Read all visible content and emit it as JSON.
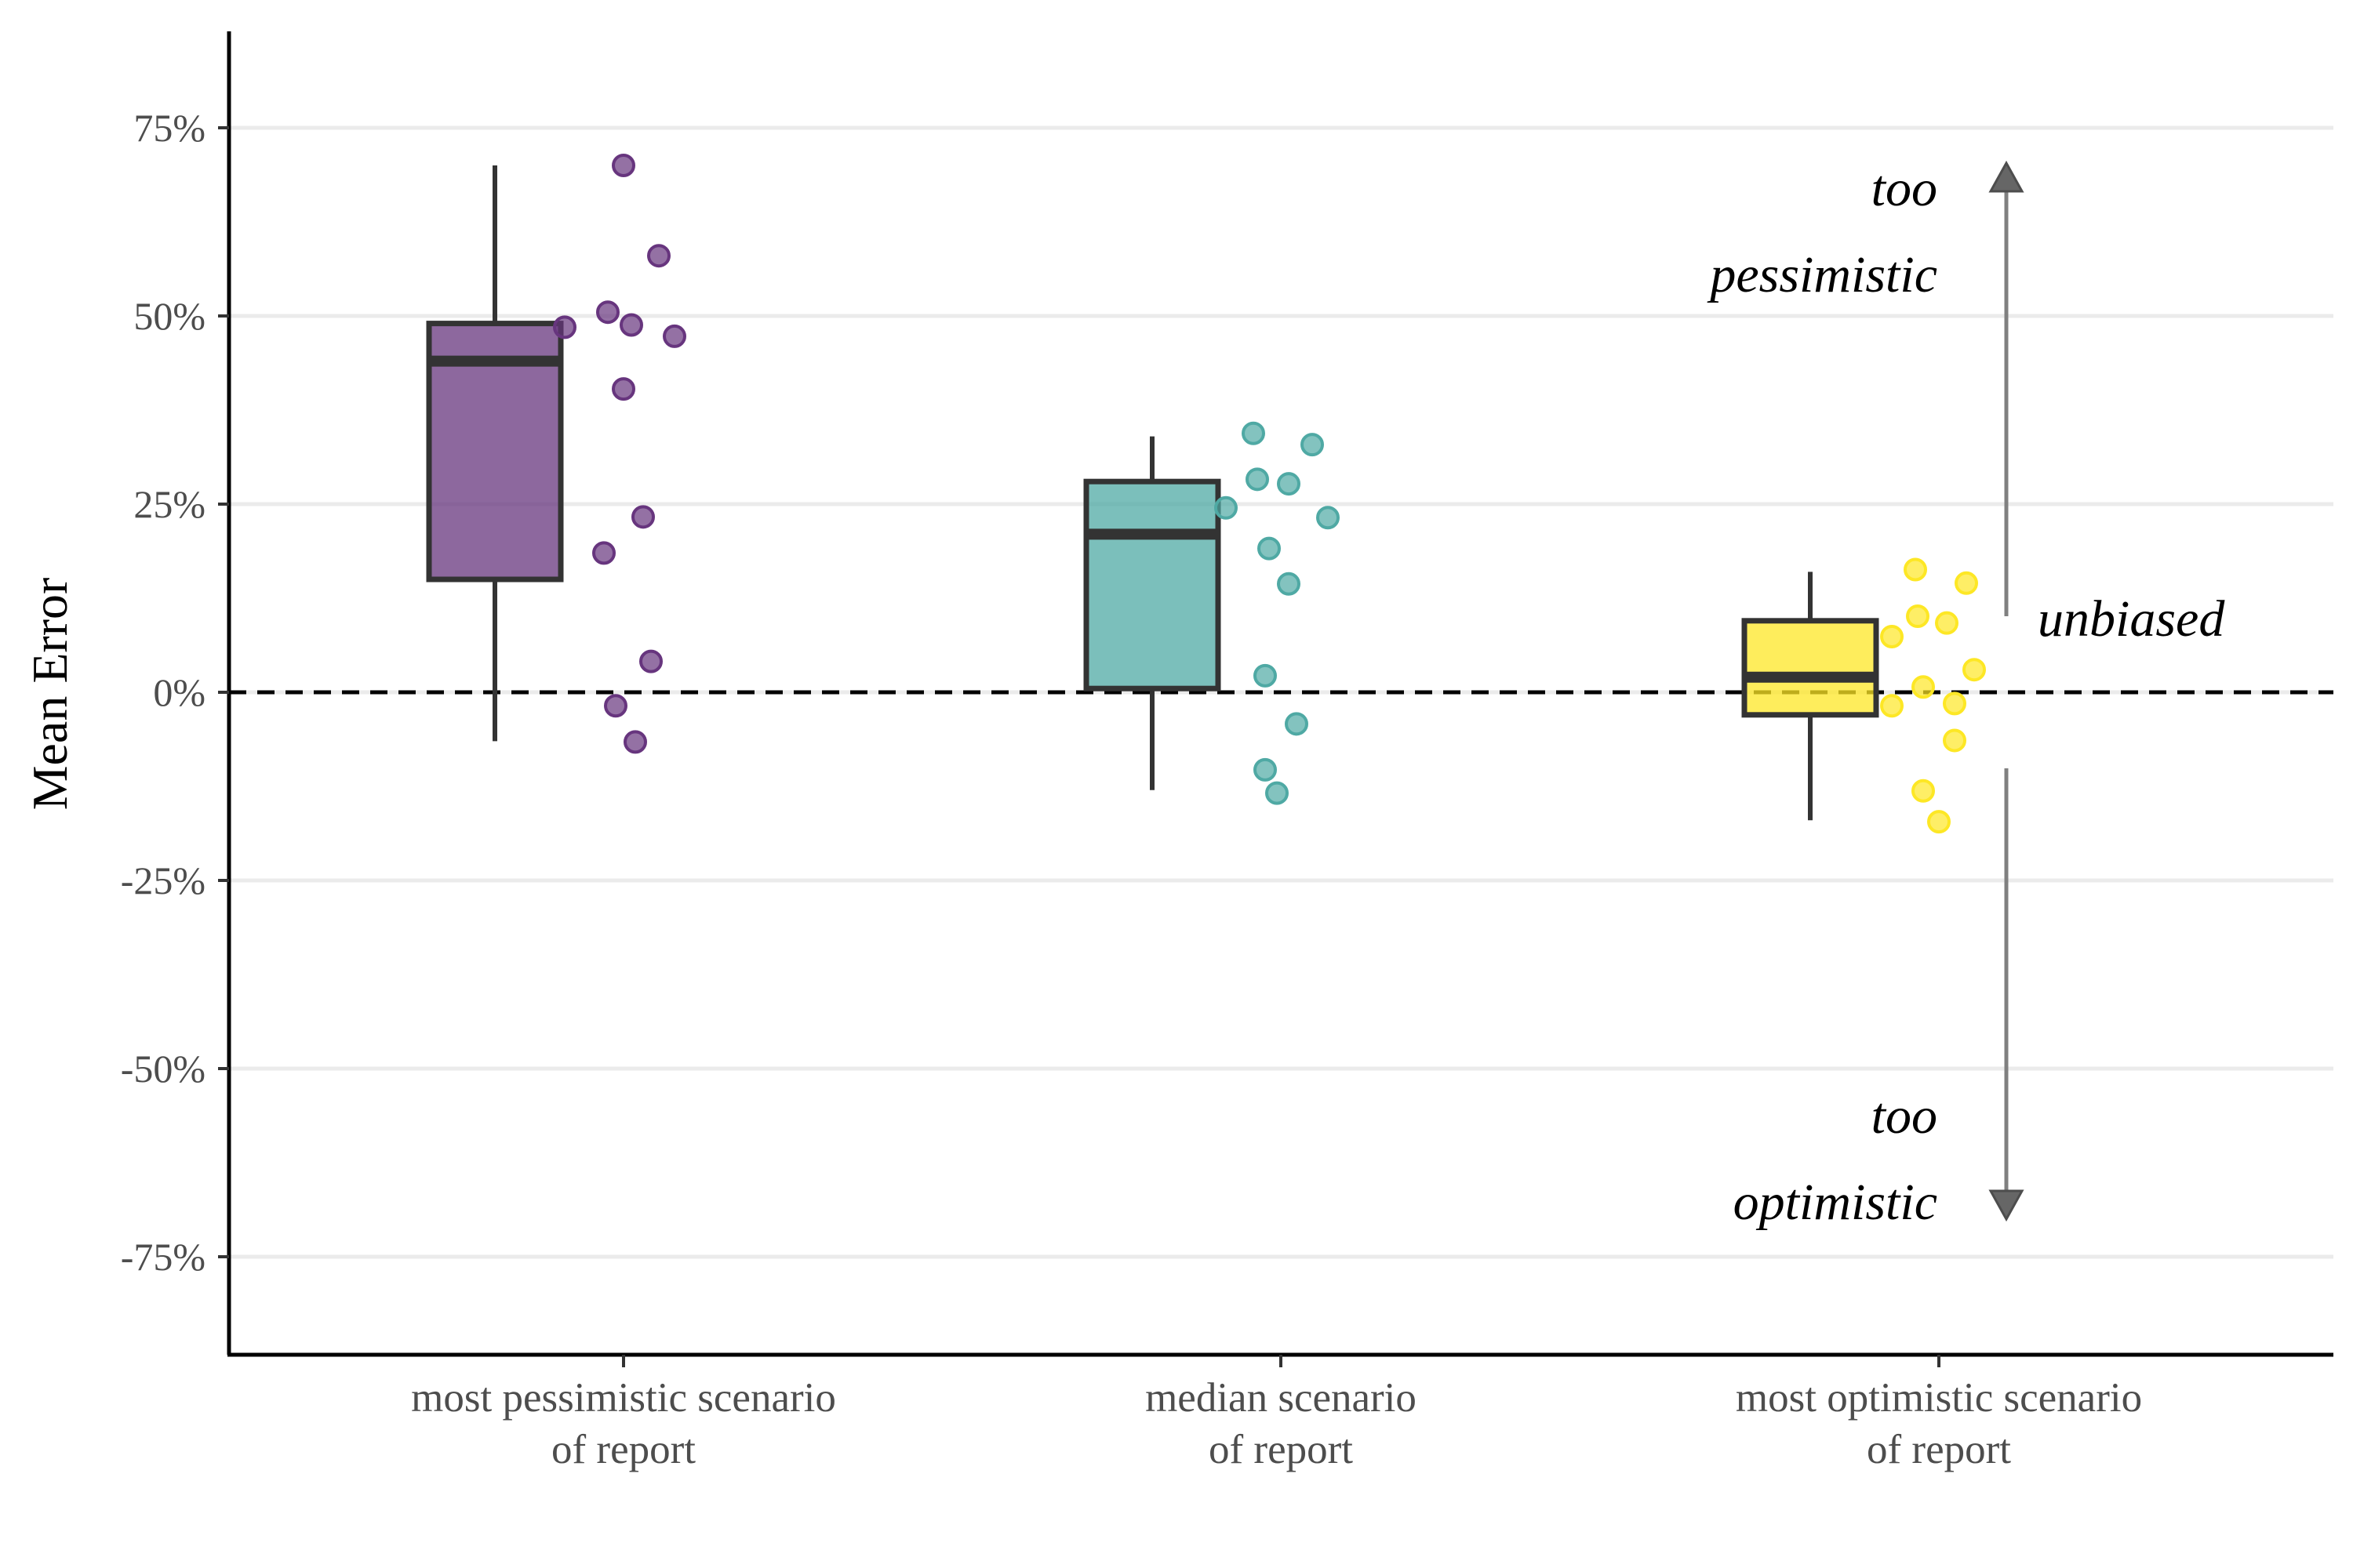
{
  "chart_data": {
    "type": "box",
    "ylabel": "Mean Error",
    "xlabel": "",
    "ylim": [
      -88,
      88
    ],
    "yticks": [
      -75,
      -50,
      -25,
      0,
      25,
      50,
      75
    ],
    "ytick_labels": [
      "-75%",
      "-50%",
      "-25%",
      "0%",
      "25%",
      "50%",
      "75%"
    ],
    "grid": "horizontal",
    "reference_line": 0,
    "categories": [
      {
        "label_lines": [
          "most pessimistic scenario",
          "of report"
        ],
        "color": "#67357E",
        "box": {
          "whisker_low": -6.5,
          "q1": 15,
          "median": 44,
          "q3": 49,
          "whisker_high": 70
        },
        "points": [
          70,
          58,
          50.5,
          48.8,
          48.5,
          47.3,
          40.3,
          23.3,
          18.5,
          4.1,
          -1.8,
          -6.6
        ]
      },
      {
        "label_lines": [
          "median scenario",
          "of report"
        ],
        "color": "#4FA9A4",
        "box": {
          "whisker_low": -13,
          "q1": 0.5,
          "median": 21,
          "q3": 28,
          "whisker_high": 34
        },
        "points": [
          34.4,
          32.9,
          28.3,
          27.7,
          24.5,
          23.2,
          19.1,
          14.4,
          2.2,
          -4.2,
          -10.3,
          -13.4
        ]
      },
      {
        "label_lines": [
          "most optimistic scenario",
          "of report"
        ],
        "color": "#FDE725",
        "box": {
          "whisker_low": -17,
          "q1": -3,
          "median": 2,
          "q3": 9.5,
          "whisker_high": 16
        },
        "points": [
          16.3,
          14.5,
          10.1,
          9.2,
          7.4,
          3.0,
          0.7,
          -1.5,
          -1.8,
          -6.4,
          -13.1,
          -17.2
        ]
      }
    ],
    "annotations": {
      "up_lines": [
        "too",
        "pessimistic"
      ],
      "middle": "unbiased",
      "down_lines": [
        "too",
        "optimistic"
      ]
    }
  }
}
